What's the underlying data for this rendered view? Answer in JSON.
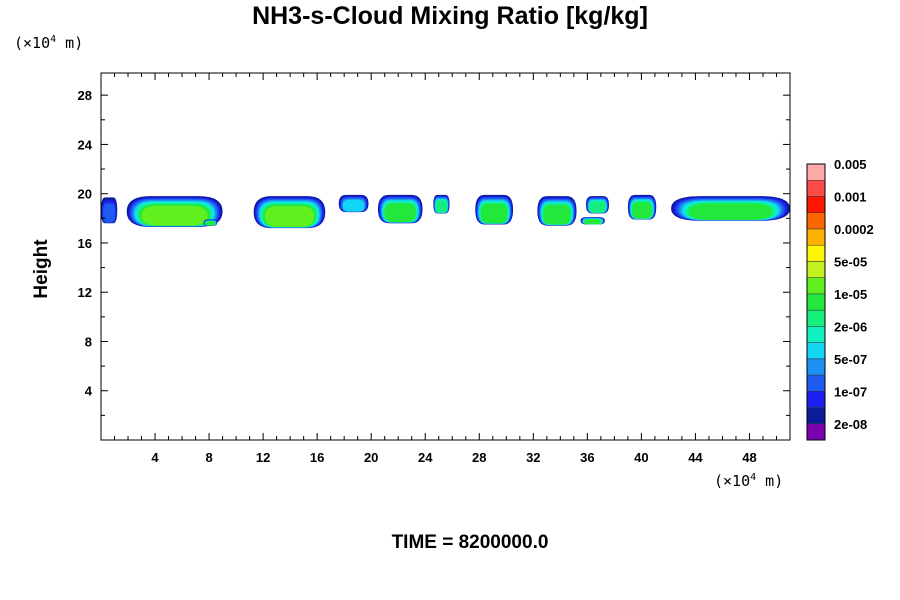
{
  "chart_data": {
    "type": "heatmap",
    "title": "NH3-s-Cloud Mixing Ratio [kg/kg]",
    "ylabel": "Height",
    "x_unit_base": "(×10",
    "x_unit_exp": "4",
    "x_unit_tail": " m)",
    "y_unit_base": "(×10",
    "y_unit_exp": "4",
    "y_unit_tail": " m)",
    "xlim": [
      0,
      51
    ],
    "ylim": [
      0,
      29.8
    ],
    "x_ticks": [
      4,
      8,
      12,
      16,
      20,
      24,
      28,
      32,
      36,
      40,
      44,
      48
    ],
    "y_ticks": [
      4,
      8,
      12,
      16,
      20,
      24,
      28
    ],
    "time_label": "TIME = 8200000.0",
    "colorbar": {
      "colors": [
        "#7a00b0",
        "#0a1c9a",
        "#1d20f0",
        "#1d5af0",
        "#1a90f0",
        "#12d6f5",
        "#10f0c0",
        "#14ee7a",
        "#22e83c",
        "#60f020",
        "#c4f020",
        "#fff500",
        "#ffb300",
        "#ff6600",
        "#ff1500",
        "#ff4a4a",
        "#ffa8a8"
      ],
      "labels": [
        "2e-08",
        "1e-07",
        "5e-07",
        "2e-06",
        "1e-05",
        "5e-05",
        "0.0002",
        "0.001",
        "0.005"
      ]
    },
    "clouds": [
      {
        "x0": 0.0,
        "x1": 1.2,
        "top": 19.7,
        "base": 17.6,
        "peak": 3
      },
      {
        "x0": 1.9,
        "x1": 9.0,
        "top": 19.8,
        "base": 17.3,
        "peak": 9
      },
      {
        "x0": 7.6,
        "x1": 8.6,
        "top": 17.9,
        "base": 17.4,
        "peak": 8
      },
      {
        "x0": 11.3,
        "x1": 16.6,
        "top": 19.8,
        "base": 17.2,
        "peak": 9
      },
      {
        "x0": 17.6,
        "x1": 19.8,
        "top": 19.9,
        "base": 18.5,
        "peak": 5
      },
      {
        "x0": 20.5,
        "x1": 23.8,
        "top": 19.9,
        "base": 17.6,
        "peak": 8
      },
      {
        "x0": 24.6,
        "x1": 25.8,
        "top": 19.9,
        "base": 18.4,
        "peak": 7
      },
      {
        "x0": 27.7,
        "x1": 30.5,
        "top": 19.9,
        "base": 17.5,
        "peak": 8
      },
      {
        "x0": 32.3,
        "x1": 35.2,
        "top": 19.8,
        "base": 17.4,
        "peak": 8
      },
      {
        "x0": 35.9,
        "x1": 37.6,
        "top": 19.8,
        "base": 18.4,
        "peak": 7
      },
      {
        "x0": 35.5,
        "x1": 37.3,
        "top": 18.1,
        "base": 17.5,
        "peak": 8
      },
      {
        "x0": 39.0,
        "x1": 41.1,
        "top": 19.9,
        "base": 17.9,
        "peak": 8
      },
      {
        "x0": 42.2,
        "x1": 51.0,
        "top": 19.8,
        "base": 17.8,
        "peak": 8
      }
    ]
  }
}
